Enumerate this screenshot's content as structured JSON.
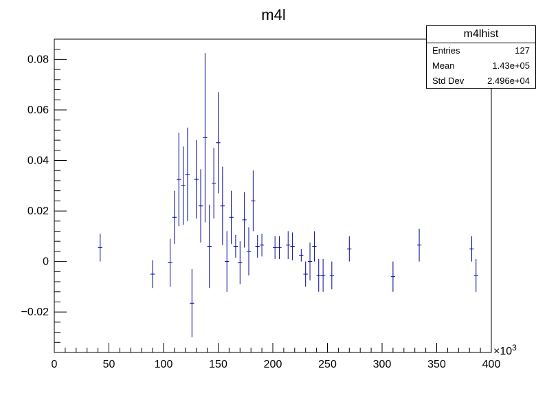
{
  "chart_data": {
    "type": "scatter",
    "title": "m4l",
    "xlabel": "",
    "ylabel": "",
    "x_multiplier_label": "×10",
    "x_multiplier_exp": "3",
    "xlim": [
      0,
      400000
    ],
    "ylim": [
      -0.036,
      0.088
    ],
    "xticks": [
      0,
      50000,
      100000,
      150000,
      200000,
      250000,
      300000,
      350000,
      400000
    ],
    "xtick_labels": [
      "0",
      "50",
      "100",
      "150",
      "200",
      "250",
      "300",
      "350",
      "400"
    ],
    "yticks": [
      -0.02,
      0,
      0.02,
      0.04,
      0.06,
      0.08
    ],
    "ytick_labels": [
      "−0.02",
      "0",
      "0.02",
      "0.04",
      "0.06",
      "0.08"
    ],
    "bin_half_width": 2000,
    "marker_color": "#000099",
    "points": [
      {
        "x": 42000,
        "y": 0.0055,
        "err": 0.0055
      },
      {
        "x": 90000,
        "y": -0.005,
        "err": 0.0055
      },
      {
        "x": 106000,
        "y": -0.0005,
        "err": 0.0095
      },
      {
        "x": 110000,
        "y": 0.0175,
        "err": 0.0105
      },
      {
        "x": 114000,
        "y": 0.0325,
        "err": 0.0185
      },
      {
        "x": 118000,
        "y": 0.03,
        "err": 0.0155
      },
      {
        "x": 122000,
        "y": 0.0345,
        "err": 0.0185
      },
      {
        "x": 126000,
        "y": -0.0165,
        "err": 0.0135
      },
      {
        "x": 130000,
        "y": 0.0325,
        "err": 0.0155
      },
      {
        "x": 134000,
        "y": 0.022,
        "err": 0.0145
      },
      {
        "x": 138000,
        "y": 0.049,
        "err": 0.0335
      },
      {
        "x": 142000,
        "y": 0.006,
        "err": 0.0165
      },
      {
        "x": 146000,
        "y": 0.031,
        "err": 0.014
      },
      {
        "x": 150000,
        "y": 0.047,
        "err": 0.02
      },
      {
        "x": 154000,
        "y": 0.022,
        "err": 0.0155
      },
      {
        "x": 158000,
        "y": 0.0,
        "err": 0.012
      },
      {
        "x": 162000,
        "y": 0.0175,
        "err": 0.0105
      },
      {
        "x": 166000,
        "y": 0.006,
        "err": 0.0045
      },
      {
        "x": 170000,
        "y": -0.0005,
        "err": 0.0085
      },
      {
        "x": 174000,
        "y": 0.0165,
        "err": 0.011
      },
      {
        "x": 178000,
        "y": 0.004,
        "err": 0.0095
      },
      {
        "x": 182000,
        "y": 0.024,
        "err": 0.012
      },
      {
        "x": 186000,
        "y": 0.006,
        "err": 0.0045
      },
      {
        "x": 190000,
        "y": 0.0065,
        "err": 0.0045
      },
      {
        "x": 202000,
        "y": 0.0055,
        "err": 0.0045
      },
      {
        "x": 206000,
        "y": 0.0055,
        "err": 0.0045
      },
      {
        "x": 214000,
        "y": 0.0065,
        "err": 0.0055
      },
      {
        "x": 218000,
        "y": 0.006,
        "err": 0.0055
      },
      {
        "x": 226000,
        "y": 0.0025,
        "err": 0.0025
      },
      {
        "x": 230000,
        "y": -0.005,
        "err": 0.005
      },
      {
        "x": 234000,
        "y": 0.0,
        "err": 0.0075
      },
      {
        "x": 238000,
        "y": 0.006,
        "err": 0.006
      },
      {
        "x": 242000,
        "y": -0.0055,
        "err": 0.0065
      },
      {
        "x": 246000,
        "y": -0.0055,
        "err": 0.0065
      },
      {
        "x": 254000,
        "y": -0.0055,
        "err": 0.0055
      },
      {
        "x": 270000,
        "y": 0.005,
        "err": 0.005
      },
      {
        "x": 310000,
        "y": -0.006,
        "err": 0.006
      },
      {
        "x": 334000,
        "y": 0.0065,
        "err": 0.0065
      },
      {
        "x": 382000,
        "y": 0.005,
        "err": 0.005
      },
      {
        "x": 386000,
        "y": -0.0055,
        "err": 0.0065
      }
    ]
  },
  "stats_box": {
    "title": "m4lhist",
    "rows": [
      {
        "label": "Entries",
        "value": "127"
      },
      {
        "label": "Mean",
        "value": "1.43e+05"
      },
      {
        "label": "Std Dev",
        "value": "2.496e+04"
      }
    ]
  }
}
